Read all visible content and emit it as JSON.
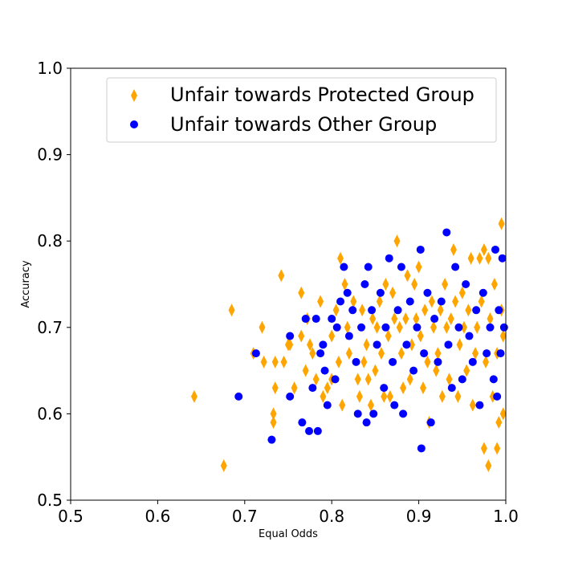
{
  "chart_data": {
    "type": "scatter",
    "title": "",
    "xlabel": "Equal Odds",
    "ylabel": "Accuracy",
    "xlim": [
      0.5,
      1.0
    ],
    "ylim": [
      0.5,
      1.0
    ],
    "xticks": [
      "0.5",
      "0.6",
      "0.7",
      "0.8",
      "0.9",
      "1.0"
    ],
    "yticks": [
      "0.5",
      "0.6",
      "0.7",
      "0.8",
      "0.9",
      "1.0"
    ],
    "grid": false,
    "legend_position": "top-right",
    "series": [
      {
        "name": "Unfair towards Protected Group",
        "marker": "diamond",
        "color": "#ffa500",
        "points": [
          [
            0.642,
            0.62
          ],
          [
            0.676,
            0.54
          ],
          [
            0.685,
            0.72
          ],
          [
            0.71,
            0.67
          ],
          [
            0.72,
            0.7
          ],
          [
            0.722,
            0.66
          ],
          [
            0.733,
            0.6
          ],
          [
            0.733,
            0.59
          ],
          [
            0.735,
            0.63
          ],
          [
            0.735,
            0.66
          ],
          [
            0.745,
            0.66
          ],
          [
            0.75,
            0.68
          ],
          [
            0.752,
            0.68
          ],
          [
            0.742,
            0.76
          ],
          [
            0.757,
            0.63
          ],
          [
            0.765,
            0.69
          ],
          [
            0.765,
            0.74
          ],
          [
            0.77,
            0.65
          ],
          [
            0.772,
            0.71
          ],
          [
            0.775,
            0.68
          ],
          [
            0.778,
            0.67
          ],
          [
            0.782,
            0.64
          ],
          [
            0.787,
            0.73
          ],
          [
            0.79,
            0.62
          ],
          [
            0.795,
            0.63
          ],
          [
            0.8,
            0.64
          ],
          [
            0.8,
            0.69
          ],
          [
            0.805,
            0.72
          ],
          [
            0.808,
            0.66
          ],
          [
            0.81,
            0.78
          ],
          [
            0.812,
            0.61
          ],
          [
            0.815,
            0.75
          ],
          [
            0.818,
            0.7
          ],
          [
            0.82,
            0.67
          ],
          [
            0.825,
            0.73
          ],
          [
            0.83,
            0.64
          ],
          [
            0.832,
            0.62
          ],
          [
            0.835,
            0.72
          ],
          [
            0.837,
            0.66
          ],
          [
            0.84,
            0.68
          ],
          [
            0.842,
            0.64
          ],
          [
            0.845,
            0.61
          ],
          [
            0.847,
            0.71
          ],
          [
            0.85,
            0.65
          ],
          [
            0.852,
            0.7
          ],
          [
            0.855,
            0.73
          ],
          [
            0.857,
            0.67
          ],
          [
            0.86,
            0.62
          ],
          [
            0.862,
            0.75
          ],
          [
            0.865,
            0.69
          ],
          [
            0.867,
            0.62
          ],
          [
            0.87,
            0.74
          ],
          [
            0.872,
            0.71
          ],
          [
            0.875,
            0.8
          ],
          [
            0.878,
            0.7
          ],
          [
            0.88,
            0.67
          ],
          [
            0.882,
            0.63
          ],
          [
            0.885,
            0.71
          ],
          [
            0.887,
            0.76
          ],
          [
            0.89,
            0.64
          ],
          [
            0.892,
            0.68
          ],
          [
            0.895,
            0.75
          ],
          [
            0.897,
            0.71
          ],
          [
            0.9,
            0.77
          ],
          [
            0.902,
            0.69
          ],
          [
            0.905,
            0.63
          ],
          [
            0.907,
            0.72
          ],
          [
            0.91,
            0.66
          ],
          [
            0.912,
            0.59
          ],
          [
            0.915,
            0.73
          ],
          [
            0.917,
            0.7
          ],
          [
            0.92,
            0.65
          ],
          [
            0.922,
            0.67
          ],
          [
            0.925,
            0.72
          ],
          [
            0.927,
            0.62
          ],
          [
            0.93,
            0.75
          ],
          [
            0.932,
            0.7
          ],
          [
            0.935,
            0.64
          ],
          [
            0.937,
            0.71
          ],
          [
            0.94,
            0.79
          ],
          [
            0.942,
            0.73
          ],
          [
            0.945,
            0.62
          ],
          [
            0.947,
            0.68
          ],
          [
            0.95,
            0.74
          ],
          [
            0.952,
            0.7
          ],
          [
            0.955,
            0.65
          ],
          [
            0.957,
            0.72
          ],
          [
            0.96,
            0.78
          ],
          [
            0.962,
            0.61
          ],
          [
            0.965,
            0.67
          ],
          [
            0.967,
            0.7
          ],
          [
            0.97,
            0.78
          ],
          [
            0.972,
            0.73
          ],
          [
            0.975,
            0.79
          ],
          [
            0.975,
            0.56
          ],
          [
            0.977,
            0.66
          ],
          [
            0.98,
            0.54
          ],
          [
            0.98,
            0.78
          ],
          [
            0.982,
            0.71
          ],
          [
            0.985,
            0.62
          ],
          [
            0.987,
            0.75
          ],
          [
            0.99,
            0.56
          ],
          [
            0.99,
            0.67
          ],
          [
            0.992,
            0.59
          ],
          [
            0.995,
            0.82
          ],
          [
            0.995,
            0.72
          ],
          [
            0.997,
            0.69
          ],
          [
            0.997,
            0.6
          ]
        ]
      },
      {
        "name": "Unfair towards Other Group",
        "marker": "circle",
        "color": "#0000ff",
        "points": [
          [
            0.693,
            0.62
          ],
          [
            0.713,
            0.67
          ],
          [
            0.731,
            0.57
          ],
          [
            0.752,
            0.69
          ],
          [
            0.752,
            0.62
          ],
          [
            0.766,
            0.59
          ],
          [
            0.77,
            0.71
          ],
          [
            0.774,
            0.58
          ],
          [
            0.778,
            0.63
          ],
          [
            0.782,
            0.71
          ],
          [
            0.784,
            0.58
          ],
          [
            0.787,
            0.67
          ],
          [
            0.79,
            0.68
          ],
          [
            0.792,
            0.65
          ],
          [
            0.795,
            0.61
          ],
          [
            0.8,
            0.71
          ],
          [
            0.804,
            0.64
          ],
          [
            0.806,
            0.7
          ],
          [
            0.81,
            0.73
          ],
          [
            0.814,
            0.77
          ],
          [
            0.818,
            0.74
          ],
          [
            0.82,
            0.69
          ],
          [
            0.824,
            0.72
          ],
          [
            0.828,
            0.66
          ],
          [
            0.83,
            0.6
          ],
          [
            0.834,
            0.7
          ],
          [
            0.838,
            0.75
          ],
          [
            0.84,
            0.59
          ],
          [
            0.842,
            0.77
          ],
          [
            0.846,
            0.72
          ],
          [
            0.848,
            0.6
          ],
          [
            0.852,
            0.68
          ],
          [
            0.856,
            0.74
          ],
          [
            0.86,
            0.63
          ],
          [
            0.862,
            0.7
          ],
          [
            0.866,
            0.78
          ],
          [
            0.87,
            0.66
          ],
          [
            0.872,
            0.61
          ],
          [
            0.876,
            0.72
          ],
          [
            0.88,
            0.77
          ],
          [
            0.882,
            0.6
          ],
          [
            0.886,
            0.68
          ],
          [
            0.89,
            0.73
          ],
          [
            0.894,
            0.65
          ],
          [
            0.898,
            0.7
          ],
          [
            0.902,
            0.79
          ],
          [
            0.903,
            0.56
          ],
          [
            0.906,
            0.67
          ],
          [
            0.91,
            0.74
          ],
          [
            0.914,
            0.59
          ],
          [
            0.918,
            0.71
          ],
          [
            0.922,
            0.66
          ],
          [
            0.926,
            0.73
          ],
          [
            0.932,
            0.81
          ],
          [
            0.934,
            0.68
          ],
          [
            0.938,
            0.63
          ],
          [
            0.942,
            0.77
          ],
          [
            0.946,
            0.7
          ],
          [
            0.95,
            0.64
          ],
          [
            0.954,
            0.75
          ],
          [
            0.958,
            0.69
          ],
          [
            0.962,
            0.66
          ],
          [
            0.966,
            0.72
          ],
          [
            0.97,
            0.61
          ],
          [
            0.974,
            0.74
          ],
          [
            0.978,
            0.67
          ],
          [
            0.982,
            0.7
          ],
          [
            0.986,
            0.64
          ],
          [
            0.988,
            0.79
          ],
          [
            0.99,
            0.62
          ],
          [
            0.992,
            0.72
          ],
          [
            0.994,
            0.67
          ],
          [
            0.996,
            0.78
          ],
          [
            0.998,
            0.7
          ]
        ]
      }
    ]
  }
}
